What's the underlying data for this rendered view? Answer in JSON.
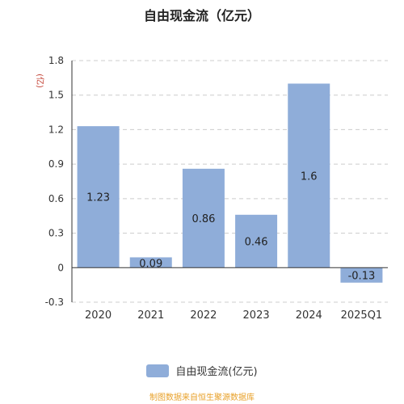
{
  "chart_data": {
    "type": "bar",
    "title": "自由现金流（亿元）",
    "ylabel": "(亿)",
    "categories": [
      "2020",
      "2021",
      "2022",
      "2023",
      "2024",
      "2025Q1"
    ],
    "series": [
      {
        "name": "自由现金流(亿元)",
        "values": [
          1.23,
          0.09,
          0.86,
          0.46,
          1.6,
          -0.13
        ],
        "labels": [
          "1.23",
          "0.09",
          "0.86",
          "0.46",
          "1.6",
          "-0.13"
        ]
      }
    ],
    "yticks": [
      "1.8",
      "1.5",
      "1.2",
      "0.9",
      "0.6",
      "0.3",
      "0",
      "-0.3"
    ],
    "ylim": [
      -0.3,
      1.8
    ],
    "grid": true,
    "legend_position": "bottom"
  },
  "colors": {
    "bar": "#8fadd9",
    "grid": "#cccccc",
    "axis": "#333333",
    "ylabel": "#c0392b",
    "source": "#e8a12a"
  },
  "footer": {
    "source_text": "制图数据来自恒生聚源数据库"
  }
}
